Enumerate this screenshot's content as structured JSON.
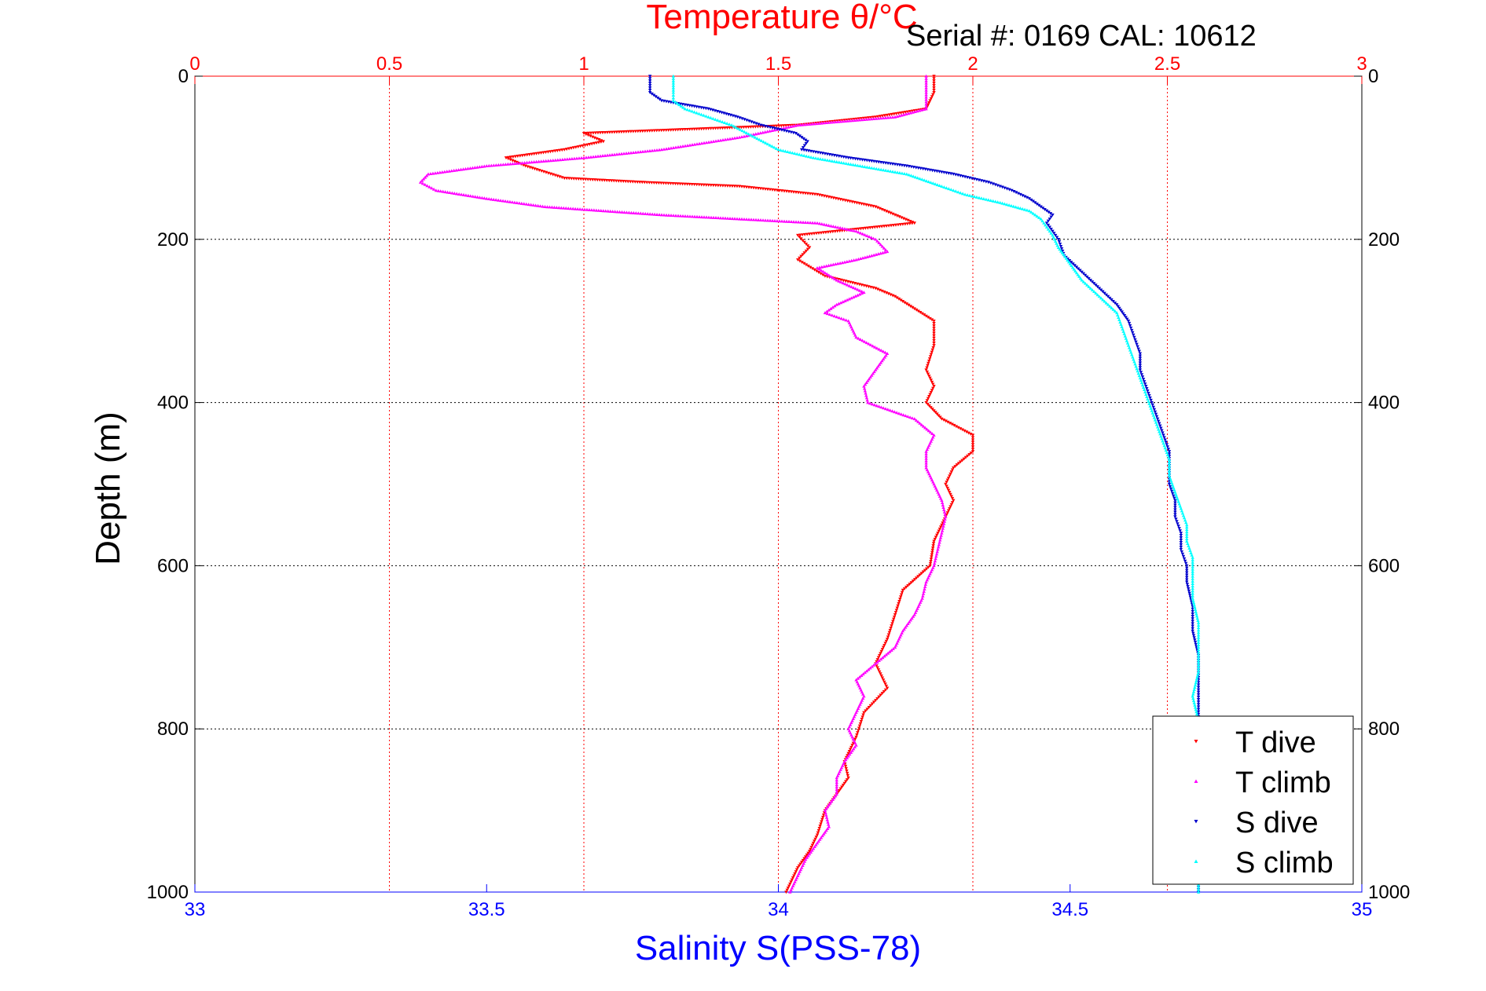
{
  "chart_data": {
    "type": "scatter",
    "title": "Temperature θ/°C",
    "annotation": "Serial #: 0169 CAL: 10612",
    "ylabel": "Depth (m)",
    "xlabel": "Salinity S(PSS-78)",
    "top_axis": {
      "label": "Temperature θ/°C",
      "range": [
        0,
        3
      ],
      "ticks": [
        "0",
        "0.5",
        "1",
        "1.5",
        "2",
        "2.5",
        "3"
      ],
      "color": "#ff0000"
    },
    "bottom_axis": {
      "label": "Salinity S(PSS-78)",
      "range": [
        33,
        35
      ],
      "ticks": [
        "33",
        "33.5",
        "34",
        "34.5",
        "35"
      ],
      "color": "#0000ff"
    },
    "y_axis": {
      "range": [
        0,
        1000
      ],
      "reversed": true,
      "ticks": [
        "0",
        "200",
        "400",
        "600",
        "800",
        "1000"
      ]
    },
    "grid": true,
    "legend_position": "bottom-right",
    "series": [
      {
        "name": "T dive",
        "axis": "temperature",
        "color": "#ff0000",
        "marker": "triangle-down",
        "points": [
          [
            1.9,
            0
          ],
          [
            1.9,
            20
          ],
          [
            1.88,
            40
          ],
          [
            1.75,
            50
          ],
          [
            1.55,
            60
          ],
          [
            1.0,
            70
          ],
          [
            1.05,
            80
          ],
          [
            0.95,
            90
          ],
          [
            0.8,
            100
          ],
          [
            0.85,
            110
          ],
          [
            0.95,
            125
          ],
          [
            1.15,
            130
          ],
          [
            1.4,
            135
          ],
          [
            1.6,
            145
          ],
          [
            1.75,
            160
          ],
          [
            1.85,
            180
          ],
          [
            1.55,
            195
          ],
          [
            1.58,
            210
          ],
          [
            1.55,
            225
          ],
          [
            1.62,
            245
          ],
          [
            1.75,
            260
          ],
          [
            1.8,
            270
          ],
          [
            1.85,
            285
          ],
          [
            1.9,
            300
          ],
          [
            1.9,
            330
          ],
          [
            1.88,
            360
          ],
          [
            1.9,
            380
          ],
          [
            1.88,
            400
          ],
          [
            1.92,
            420
          ],
          [
            2.0,
            440
          ],
          [
            2.0,
            460
          ],
          [
            1.95,
            480
          ],
          [
            1.93,
            500
          ],
          [
            1.95,
            520
          ],
          [
            1.93,
            540
          ],
          [
            1.9,
            570
          ],
          [
            1.89,
            600
          ],
          [
            1.82,
            630
          ],
          [
            1.8,
            660
          ],
          [
            1.78,
            690
          ],
          [
            1.75,
            720
          ],
          [
            1.78,
            750
          ],
          [
            1.72,
            780
          ],
          [
            1.7,
            810
          ],
          [
            1.67,
            840
          ],
          [
            1.68,
            860
          ],
          [
            1.65,
            880
          ],
          [
            1.62,
            900
          ],
          [
            1.6,
            930
          ],
          [
            1.58,
            950
          ],
          [
            1.55,
            970
          ],
          [
            1.53,
            990
          ],
          [
            1.52,
            1000
          ]
        ]
      },
      {
        "name": "T climb",
        "axis": "temperature",
        "color": "#ff00ff",
        "marker": "triangle-up",
        "points": [
          [
            1.88,
            0
          ],
          [
            1.88,
            20
          ],
          [
            1.88,
            40
          ],
          [
            1.8,
            50
          ],
          [
            1.55,
            60
          ],
          [
            1.4,
            75
          ],
          [
            1.2,
            90
          ],
          [
            1.0,
            100
          ],
          [
            0.75,
            110
          ],
          [
            0.6,
            120
          ],
          [
            0.58,
            130
          ],
          [
            0.62,
            140
          ],
          [
            0.75,
            150
          ],
          [
            0.9,
            160
          ],
          [
            1.2,
            170
          ],
          [
            1.6,
            180
          ],
          [
            1.7,
            190
          ],
          [
            1.75,
            200
          ],
          [
            1.78,
            215
          ],
          [
            1.7,
            225
          ],
          [
            1.6,
            235
          ],
          [
            1.65,
            250
          ],
          [
            1.72,
            265
          ],
          [
            1.65,
            280
          ],
          [
            1.62,
            290
          ],
          [
            1.68,
            300
          ],
          [
            1.7,
            320
          ],
          [
            1.78,
            340
          ],
          [
            1.75,
            360
          ],
          [
            1.72,
            380
          ],
          [
            1.73,
            400
          ],
          [
            1.85,
            420
          ],
          [
            1.9,
            440
          ],
          [
            1.88,
            460
          ],
          [
            1.88,
            480
          ],
          [
            1.9,
            500
          ],
          [
            1.92,
            520
          ],
          [
            1.93,
            540
          ],
          [
            1.92,
            560
          ],
          [
            1.91,
            580
          ],
          [
            1.9,
            600
          ],
          [
            1.88,
            620
          ],
          [
            1.87,
            640
          ],
          [
            1.85,
            660
          ],
          [
            1.82,
            680
          ],
          [
            1.8,
            700
          ],
          [
            1.75,
            720
          ],
          [
            1.7,
            740
          ],
          [
            1.72,
            760
          ],
          [
            1.7,
            780
          ],
          [
            1.68,
            800
          ],
          [
            1.7,
            820
          ],
          [
            1.67,
            840
          ],
          [
            1.65,
            860
          ],
          [
            1.65,
            880
          ],
          [
            1.62,
            900
          ],
          [
            1.63,
            920
          ],
          [
            1.6,
            940
          ],
          [
            1.57,
            960
          ],
          [
            1.55,
            980
          ],
          [
            1.53,
            1000
          ]
        ]
      },
      {
        "name": "S dive",
        "axis": "salinity",
        "color": "#0000cc",
        "marker": "triangle-down",
        "points": [
          [
            33.78,
            0
          ],
          [
            33.78,
            20
          ],
          [
            33.8,
            30
          ],
          [
            33.88,
            40
          ],
          [
            33.93,
            50
          ],
          [
            33.97,
            60
          ],
          [
            34.03,
            70
          ],
          [
            34.05,
            80
          ],
          [
            34.04,
            90
          ],
          [
            34.12,
            100
          ],
          [
            34.22,
            110
          ],
          [
            34.3,
            120
          ],
          [
            34.36,
            130
          ],
          [
            34.4,
            140
          ],
          [
            34.43,
            150
          ],
          [
            34.45,
            160
          ],
          [
            34.47,
            170
          ],
          [
            34.46,
            180
          ],
          [
            34.47,
            190
          ],
          [
            34.48,
            200
          ],
          [
            34.49,
            220
          ],
          [
            34.52,
            240
          ],
          [
            34.55,
            260
          ],
          [
            34.58,
            280
          ],
          [
            34.6,
            300
          ],
          [
            34.61,
            320
          ],
          [
            34.62,
            340
          ],
          [
            34.62,
            360
          ],
          [
            34.63,
            380
          ],
          [
            34.64,
            400
          ],
          [
            34.65,
            420
          ],
          [
            34.66,
            440
          ],
          [
            34.67,
            460
          ],
          [
            34.67,
            480
          ],
          [
            34.67,
            500
          ],
          [
            34.68,
            520
          ],
          [
            34.68,
            540
          ],
          [
            34.69,
            560
          ],
          [
            34.69,
            580
          ],
          [
            34.7,
            600
          ],
          [
            34.7,
            620
          ],
          [
            34.71,
            650
          ],
          [
            34.71,
            680
          ],
          [
            34.72,
            710
          ],
          [
            34.72,
            740
          ],
          [
            34.72,
            770
          ],
          [
            34.72,
            800
          ],
          [
            34.72,
            830
          ],
          [
            34.72,
            860
          ],
          [
            34.72,
            900
          ],
          [
            34.72,
            940
          ],
          [
            34.72,
            970
          ],
          [
            34.72,
            1000
          ]
        ]
      },
      {
        "name": "S climb",
        "axis": "salinity",
        "color": "#00ffff",
        "marker": "triangle-up",
        "points": [
          [
            33.82,
            0
          ],
          [
            33.82,
            20
          ],
          [
            33.82,
            30
          ],
          [
            33.84,
            40
          ],
          [
            33.88,
            50
          ],
          [
            33.92,
            60
          ],
          [
            33.96,
            75
          ],
          [
            34.0,
            90
          ],
          [
            34.06,
            100
          ],
          [
            34.14,
            110
          ],
          [
            34.22,
            120
          ],
          [
            34.28,
            135
          ],
          [
            34.32,
            145
          ],
          [
            34.38,
            155
          ],
          [
            34.43,
            165
          ],
          [
            34.45,
            175
          ],
          [
            34.46,
            185
          ],
          [
            34.47,
            195
          ],
          [
            34.48,
            210
          ],
          [
            34.5,
            230
          ],
          [
            34.52,
            250
          ],
          [
            34.55,
            270
          ],
          [
            34.58,
            290
          ],
          [
            34.59,
            310
          ],
          [
            34.6,
            330
          ],
          [
            34.61,
            350
          ],
          [
            34.62,
            370
          ],
          [
            34.63,
            390
          ],
          [
            34.64,
            410
          ],
          [
            34.65,
            430
          ],
          [
            34.66,
            450
          ],
          [
            34.67,
            470
          ],
          [
            34.67,
            490
          ],
          [
            34.68,
            510
          ],
          [
            34.69,
            530
          ],
          [
            34.7,
            550
          ],
          [
            34.7,
            570
          ],
          [
            34.71,
            590
          ],
          [
            34.71,
            610
          ],
          [
            34.71,
            640
          ],
          [
            34.72,
            670
          ],
          [
            34.72,
            700
          ],
          [
            34.72,
            730
          ],
          [
            34.71,
            760
          ],
          [
            34.72,
            790
          ],
          [
            34.72,
            820
          ],
          [
            34.72,
            850
          ],
          [
            34.72,
            880
          ],
          [
            34.72,
            910
          ],
          [
            34.72,
            940
          ],
          [
            34.72,
            970
          ],
          [
            34.72,
            1000
          ]
        ]
      }
    ]
  }
}
